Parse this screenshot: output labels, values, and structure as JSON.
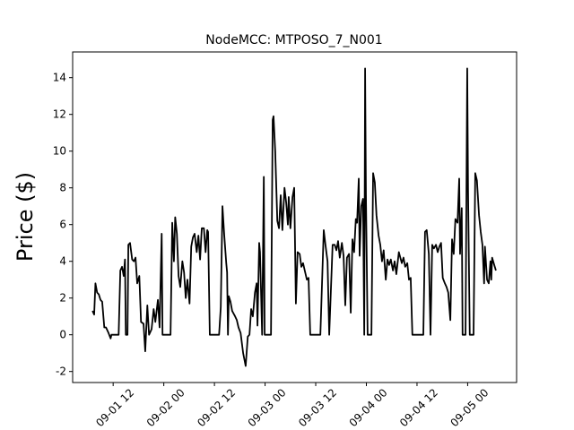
{
  "chart_data": {
    "type": "line",
    "title": "NodeMCC: MTPOSO_7_N001",
    "y_label": "Price ($)",
    "color": "#000000",
    "x": [
      7.1,
      7.5,
      7.8,
      8.2,
      8.6,
      9.0,
      9.4,
      9.9,
      10.3,
      10.9,
      11.4,
      11.6,
      13.3,
      13.7,
      14.1,
      14.5,
      14.8,
      15.0,
      15.4,
      15.6,
      16.0,
      16.5,
      16.9,
      17.3,
      17.7,
      18.2,
      18.6,
      19.2,
      19.6,
      20.1,
      20.5,
      21.1,
      21.6,
      22.0,
      22.6,
      23.0,
      23.5,
      23.7,
      25.6,
      26.0,
      26.4,
      26.7,
      27.1,
      27.5,
      27.9,
      28.4,
      28.8,
      29.2,
      29.6,
      30.1,
      30.5,
      30.9,
      31.3,
      31.8,
      32.2,
      32.6,
      33.0,
      33.5,
      33.9,
      34.3,
      34.5,
      34.9,
      37.1,
      37.5,
      37.9,
      38.3,
      38.8,
      39.0,
      39.2,
      39.4,
      39.8,
      40.2,
      40.9,
      41.3,
      41.7,
      42.2,
      42.8,
      43.4,
      43.9,
      44.3,
      44.7,
      45.1,
      45.6,
      46.0,
      46.2,
      46.6,
      46.8,
      47.3,
      47.7,
      47.9,
      49.4,
      49.8,
      50.0,
      50.4,
      50.9,
      51.3,
      51.7,
      52.1,
      52.6,
      53.0,
      53.4,
      53.6,
      54.0,
      54.5,
      54.9,
      55.3,
      55.7,
      56.2,
      56.6,
      57.0,
      57.4,
      57.9,
      58.3,
      58.7,
      61.1,
      61.9,
      62.3,
      62.8,
      63.2,
      64.0,
      64.5,
      64.9,
      65.3,
      65.7,
      66.2,
      66.6,
      67.0,
      67.4,
      67.9,
      68.3,
      68.7,
      69.1,
      69.5,
      69.8,
      70.2,
      70.4,
      70.8,
      71.2,
      71.5,
      71.7,
      71.9,
      72.3,
      73.2,
      73.6,
      74.0,
      74.4,
      74.9,
      75.3,
      75.7,
      76.1,
      76.6,
      77.0,
      77.4,
      77.8,
      78.3,
      78.7,
      79.1,
      79.7,
      80.4,
      80.8,
      81.2,
      81.7,
      82.1,
      82.5,
      82.9,
      85.5,
      85.9,
      86.3,
      86.8,
      87.2,
      87.6,
      88.0,
      88.5,
      88.9,
      89.3,
      89.7,
      90.1,
      90.6,
      91.0,
      91.4,
      91.9,
      92.3,
      92.7,
      93.1,
      93.6,
      94.0,
      94.2,
      94.6,
      94.8,
      95.5,
      95.9,
      96.1,
      96.5,
      97.4,
      97.8,
      98.2,
      98.7,
      99.1,
      99.5,
      99.9,
      100.1,
      100.6,
      101.0,
      101.4,
      101.6,
      101.8,
      102.3,
      102.7
    ],
    "values": [
      1.3,
      1.1,
      2.8,
      2.3,
      2.2,
      1.9,
      1.8,
      0.4,
      0.4,
      0.1,
      -0.2,
      0,
      0,
      3.5,
      3.7,
      3.2,
      4.1,
      0,
      0,
      4.9,
      5.0,
      4.1,
      4.0,
      4.2,
      2.8,
      3.2,
      0.7,
      0.6,
      -0.9,
      1.6,
      0,
      0.3,
      1.4,
      0.7,
      1.9,
      0.4,
      5.5,
      0,
      0,
      6.1,
      4.0,
      6.4,
      5.5,
      3.2,
      2.6,
      4.0,
      3.4,
      2.0,
      3.0,
      1.7,
      4.8,
      5.3,
      5.5,
      4.5,
      5.4,
      4.1,
      5.8,
      5.8,
      4.5,
      5.7,
      5.6,
      0,
      0,
      1.5,
      7.0,
      5.5,
      3.9,
      3.4,
      0,
      2.1,
      1.8,
      1.3,
      1.0,
      0.8,
      0.4,
      0.1,
      -1.0,
      -1.7,
      -0.1,
      0,
      1.4,
      1.0,
      2.3,
      2.8,
      0.5,
      5.0,
      4.5,
      0,
      8.6,
      0,
      0,
      11.7,
      11.9,
      10.0,
      6.2,
      5.8,
      7.6,
      5.7,
      8.0,
      7.2,
      6.0,
      7.5,
      5.8,
      7.5,
      8.0,
      1.7,
      4.5,
      4.4,
      3.7,
      3.9,
      3.5,
      3.0,
      3.1,
      0,
      0,
      5.7,
      4.9,
      4.0,
      0,
      4.9,
      4.9,
      4.6,
      5.1,
      4.2,
      5.0,
      4.3,
      1.6,
      4.2,
      4.4,
      1.2,
      5.2,
      4.5,
      6.3,
      6.1,
      8.5,
      4.3,
      7.0,
      7.4,
      0,
      14.5,
      7.6,
      0,
      0,
      8.8,
      8.3,
      6.5,
      5.4,
      4.9,
      4.0,
      4.6,
      3.0,
      4.1,
      3.8,
      4.1,
      3.5,
      4.0,
      3.3,
      4.5,
      3.9,
      4.2,
      3.7,
      3.9,
      3.0,
      3.1,
      0,
      0,
      5.6,
      5.7,
      4.4,
      0,
      4.9,
      4.7,
      4.9,
      4.5,
      4.8,
      5.0,
      3.1,
      2.8,
      2.6,
      2.3,
      0.8,
      5.2,
      4.4,
      6.3,
      6.1,
      8.5,
      4.4,
      6.9,
      0,
      0,
      14.5,
      7.8,
      0,
      0,
      8.8,
      8.4,
      6.5,
      5.6,
      4.9,
      2.8,
      4.8,
      3.0,
      2.8,
      4.0,
      3.0,
      4.2,
      3.8,
      3.5
    ],
    "xlim": [
      2.4,
      107.6
    ],
    "xticks": [
      {
        "value": 12,
        "label": "09-01 12"
      },
      {
        "value": 24,
        "label": "09-02 00"
      },
      {
        "value": 36,
        "label": "09-02 12"
      },
      {
        "value": 48,
        "label": "09-03 00"
      },
      {
        "value": 60,
        "label": "09-03 12"
      },
      {
        "value": 72,
        "label": "09-04 00"
      },
      {
        "value": 84,
        "label": "09-04 12"
      },
      {
        "value": 96,
        "label": "09-05 00"
      }
    ],
    "ylim": [
      -2.6,
      15.4
    ],
    "yticks": [
      -2,
      0,
      2,
      4,
      6,
      8,
      10,
      12,
      14
    ]
  }
}
